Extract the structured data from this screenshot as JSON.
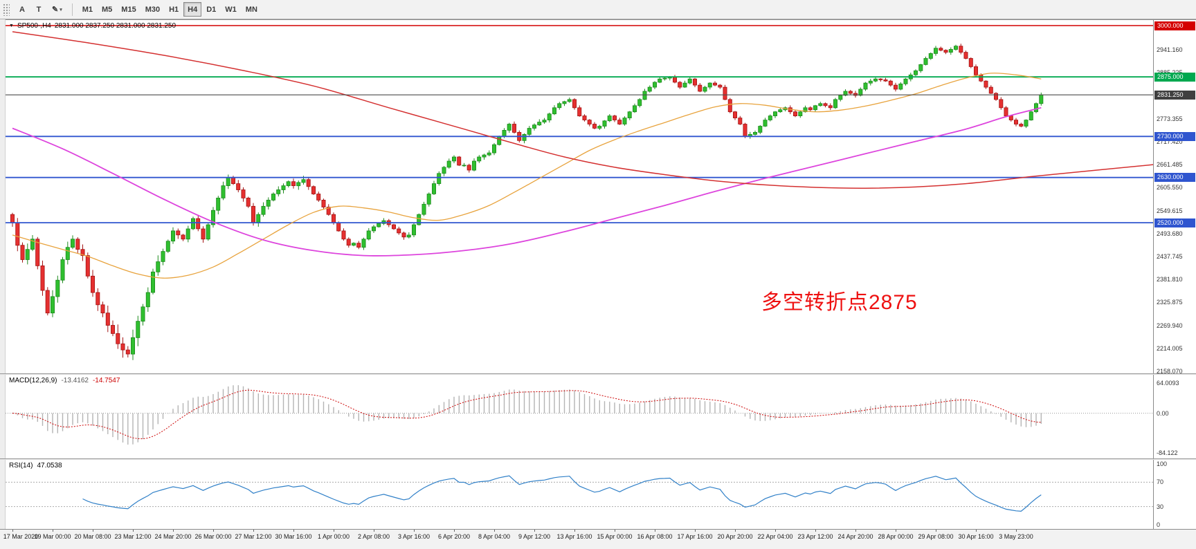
{
  "toolbar": {
    "text_tool_label": "A",
    "textbox_tool_label": "T",
    "timeframes": [
      "M1",
      "M5",
      "M15",
      "M30",
      "H1",
      "H4",
      "D1",
      "W1",
      "MN"
    ],
    "active_timeframe": "H4"
  },
  "icons": {
    "pencil": "✎",
    "caret": "▾",
    "title_triangle": "▼"
  },
  "chart": {
    "title_symbol": "SP500-,H4",
    "title_ohlc": "2831.000 2837.250 2831.000 2831.250",
    "annotation": {
      "text": "多空转折点2875",
      "color": "#ee1111"
    },
    "current_price": {
      "value": 2831.25,
      "label": "2831.250",
      "tag_color": "#3f3f3f",
      "line_color": "#4a4a4a"
    },
    "levels": [
      {
        "price": 3000.0,
        "label": "3000.000",
        "color": "#d40000"
      },
      {
        "price": 2875.0,
        "label": "2875.000",
        "color": "#00a84f"
      },
      {
        "price": 2730.0,
        "label": "2730.000",
        "color": "#2f55cf"
      },
      {
        "price": 2630.0,
        "label": "2630.000",
        "color": "#2f55cf"
      },
      {
        "price": 2520.0,
        "label": "2520.000",
        "color": "#2f55cf"
      }
    ],
    "y_axis_labels": [
      "2941.160",
      "2885.225",
      "2773.355",
      "2717.420",
      "2661.485",
      "2605.550",
      "2549.615",
      "2493.680",
      "2437.745",
      "2381.810",
      "2325.875",
      "2269.940",
      "2214.005",
      "2158.070"
    ]
  },
  "chart_data": {
    "type": "candlestick",
    "symbol": "SP500-",
    "period": "H4",
    "ohlc_display": {
      "open": "2831.000",
      "high": "2837.250",
      "low": "2831.000",
      "close": "2831.250"
    },
    "price_axis_top": 3000.0,
    "price_axis_bottom": 2158.07,
    "candle_up_color": "#2fbf2f",
    "candle_down_color": "#e53030",
    "first_open": 2540,
    "closes": [
      2520,
      2465,
      2430,
      2455,
      2480,
      2415,
      2355,
      2300,
      2340,
      2380,
      2430,
      2460,
      2480,
      2455,
      2440,
      2390,
      2350,
      2320,
      2300,
      2270,
      2250,
      2225,
      2210,
      2200,
      2240,
      2280,
      2315,
      2350,
      2400,
      2425,
      2450,
      2475,
      2500,
      2490,
      2480,
      2505,
      2530,
      2505,
      2480,
      2515,
      2550,
      2580,
      2610,
      2630,
      2615,
      2600,
      2580,
      2560,
      2520,
      2540,
      2560,
      2575,
      2590,
      2600,
      2610,
      2620,
      2610,
      2618,
      2625,
      2608,
      2590,
      2575,
      2558,
      2540,
      2520,
      2500,
      2480,
      2465,
      2470,
      2460,
      2480,
      2500,
      2510,
      2518,
      2525,
      2515,
      2505,
      2495,
      2485,
      2490,
      2515,
      2540,
      2565,
      2590,
      2615,
      2640,
      2655,
      2670,
      2680,
      2660,
      2660,
      2648,
      2670,
      2680,
      2685,
      2690,
      2710,
      2730,
      2745,
      2760,
      2740,
      2720,
      2735,
      2750,
      2758,
      2765,
      2770,
      2785,
      2800,
      2810,
      2815,
      2820,
      2800,
      2780,
      2770,
      2760,
      2750,
      2755,
      2768,
      2780,
      2770,
      2760,
      2775,
      2790,
      2805,
      2820,
      2840,
      2850,
      2862,
      2870,
      2872,
      2875,
      2862,
      2850,
      2860,
      2870,
      2855,
      2840,
      2850,
      2860,
      2855,
      2850,
      2820,
      2790,
      2775,
      2760,
      2730,
      2735,
      2740,
      2755,
      2770,
      2780,
      2790,
      2795,
      2800,
      2790,
      2780,
      2790,
      2800,
      2795,
      2805,
      2810,
      2805,
      2800,
      2820,
      2830,
      2840,
      2835,
      2830,
      2845,
      2860,
      2865,
      2870,
      2868,
      2865,
      2855,
      2845,
      2858,
      2870,
      2880,
      2890,
      2905,
      2920,
      2932,
      2945,
      2940,
      2935,
      2942,
      2950,
      2935,
      2920,
      2900,
      2880,
      2865,
      2850,
      2835,
      2820,
      2800,
      2780,
      2770,
      2760,
      2755,
      2770,
      2790,
      2810,
      2831.25
    ],
    "candles_per_label": 8,
    "x_labels": [
      "17 Mar 2020",
      "19 Mar 00:00",
      "20 Mar 08:00",
      "23 Mar 12:00",
      "24 Mar 20:00",
      "26 Mar 00:00",
      "27 Mar 12:00",
      "30 Mar 16:00",
      "1 Apr 00:00",
      "2 Apr 08:00",
      "3 Apr 16:00",
      "6 Apr 20:00",
      "8 Apr 04:00",
      "9 Apr 12:00",
      "13 Apr 16:00",
      "15 Apr 00:00",
      "16 Apr 08:00",
      "17 Apr 16:00",
      "20 Apr 20:00",
      "22 Apr 04:00",
      "23 Apr 12:00",
      "24 Apr 20:00",
      "28 Apr 00:00",
      "29 Apr 08:00",
      "30 Apr 16:00",
      "3 May 23:00"
    ],
    "ma_lines": [
      {
        "name": "ma-fast-orange",
        "color": "#e8a33d",
        "points": [
          [
            0,
            2490
          ],
          [
            5,
            2472
          ],
          [
            10,
            2455
          ],
          [
            15,
            2438
          ],
          [
            20,
            2415
          ],
          [
            25,
            2395
          ],
          [
            30,
            2385
          ],
          [
            35,
            2392
          ],
          [
            40,
            2412
          ],
          [
            45,
            2445
          ],
          [
            50,
            2480
          ],
          [
            55,
            2515
          ],
          [
            60,
            2545
          ],
          [
            65,
            2560
          ],
          [
            70,
            2556
          ],
          [
            75,
            2546
          ],
          [
            80,
            2532
          ],
          [
            85,
            2526
          ],
          [
            90,
            2540
          ],
          [
            95,
            2562
          ],
          [
            100,
            2594
          ],
          [
            105,
            2628
          ],
          [
            110,
            2662
          ],
          [
            115,
            2696
          ],
          [
            120,
            2722
          ],
          [
            125,
            2744
          ],
          [
            130,
            2764
          ],
          [
            135,
            2784
          ],
          [
            140,
            2802
          ],
          [
            145,
            2810
          ],
          [
            150,
            2806
          ],
          [
            155,
            2796
          ],
          [
            160,
            2790
          ],
          [
            165,
            2794
          ],
          [
            170,
            2804
          ],
          [
            175,
            2818
          ],
          [
            180,
            2834
          ],
          [
            185,
            2854
          ],
          [
            190,
            2872
          ],
          [
            195,
            2884
          ],
          [
            200,
            2880
          ],
          [
            205,
            2870
          ]
        ]
      },
      {
        "name": "ma-mid-magenta",
        "color": "#dd44dd",
        "points": [
          [
            0,
            2750
          ],
          [
            10,
            2700
          ],
          [
            20,
            2640
          ],
          [
            30,
            2578
          ],
          [
            40,
            2522
          ],
          [
            50,
            2478
          ],
          [
            60,
            2452
          ],
          [
            70,
            2440
          ],
          [
            80,
            2442
          ],
          [
            90,
            2452
          ],
          [
            100,
            2470
          ],
          [
            110,
            2498
          ],
          [
            120,
            2530
          ],
          [
            130,
            2562
          ],
          [
            140,
            2596
          ],
          [
            150,
            2628
          ],
          [
            160,
            2658
          ],
          [
            170,
            2688
          ],
          [
            180,
            2718
          ],
          [
            190,
            2748
          ],
          [
            198,
            2778
          ],
          [
            205,
            2800
          ]
        ]
      },
      {
        "name": "ma-slow-red",
        "color": "#d43030",
        "points": [
          [
            0,
            2985
          ],
          [
            15,
            2958
          ],
          [
            30,
            2928
          ],
          [
            45,
            2893
          ],
          [
            60,
            2853
          ],
          [
            75,
            2800
          ],
          [
            90,
            2748
          ],
          [
            100,
            2713
          ],
          [
            110,
            2680
          ],
          [
            120,
            2655
          ],
          [
            130,
            2637
          ],
          [
            140,
            2622
          ],
          [
            150,
            2612
          ],
          [
            160,
            2606
          ],
          [
            170,
            2604
          ],
          [
            180,
            2607
          ],
          [
            190,
            2615
          ],
          [
            200,
            2628
          ],
          [
            206,
            2636
          ],
          [
            228,
            2662
          ]
        ]
      }
    ],
    "macd": {
      "label": "MACD(12,26,9)",
      "main_value": "-13.4162",
      "signal_value": "-14.7547",
      "fast": 12,
      "slow": 26,
      "signal": 9,
      "axis_labels": [
        "64.0093",
        "0.00",
        "-84.122"
      ],
      "y_max": 64.0093,
      "y_min": -84.122,
      "histogram_color": "#b4b4b4",
      "signal_color": "#cc0000"
    },
    "rsi": {
      "label": "RSI(14)",
      "value_text": "47.0538",
      "period": 14,
      "axis_labels": [
        "100",
        "70",
        "30",
        "0"
      ],
      "levels": [
        70,
        30
      ],
      "line_color": "#3080c8"
    }
  }
}
